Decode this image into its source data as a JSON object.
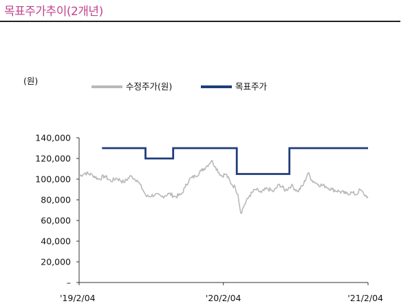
{
  "page": {
    "title": "목표주가추이(2개년)"
  },
  "chart_data": {
    "type": "line",
    "ylabel": "(원)",
    "ylim": [
      0,
      140000
    ],
    "yticks": [
      0,
      20000,
      40000,
      60000,
      80000,
      100000,
      120000,
      140000
    ],
    "ytick_labels": [
      "–",
      "20,000",
      "40,000",
      "60,000",
      "80,000",
      "100,000",
      "120,000",
      "140,000"
    ],
    "xlim": [
      "2019-02-04",
      "2021-02-04"
    ],
    "xticks": [
      "2019-02-04",
      "2020-02-04",
      "2021-02-04"
    ],
    "xtick_labels": [
      "'19/2/04",
      "'20/2/04",
      "'21/2/04"
    ],
    "legend_position": "top",
    "series": [
      {
        "name": "수정주가(원)",
        "color": "#b8b8b8",
        "style": "line",
        "points": [
          [
            "2019-02-04",
            103000
          ],
          [
            "2019-02-20",
            106000
          ],
          [
            "2019-03-10",
            104000
          ],
          [
            "2019-03-25",
            100000
          ],
          [
            "2019-04-10",
            103000
          ],
          [
            "2019-04-25",
            98000
          ],
          [
            "2019-05-10",
            101000
          ],
          [
            "2019-05-28",
            97000
          ],
          [
            "2019-06-15",
            103000
          ],
          [
            "2019-07-01",
            99000
          ],
          [
            "2019-07-15",
            90000
          ],
          [
            "2019-07-25",
            83000
          ],
          [
            "2019-08-15",
            85000
          ],
          [
            "2019-09-01",
            83000
          ],
          [
            "2019-09-20",
            86000
          ],
          [
            "2019-10-05",
            83000
          ],
          [
            "2019-10-20",
            85000
          ],
          [
            "2019-10-30",
            92000
          ],
          [
            "2019-11-10",
            100000
          ],
          [
            "2019-11-25",
            103000
          ],
          [
            "2019-12-10",
            108000
          ],
          [
            "2019-12-25",
            113000
          ],
          [
            "2020-01-05",
            118000
          ],
          [
            "2020-01-15",
            112000
          ],
          [
            "2020-01-30",
            103000
          ],
          [
            "2020-02-10",
            105000
          ],
          [
            "2020-02-25",
            95000
          ],
          [
            "2020-03-05",
            92000
          ],
          [
            "2020-03-12",
            85000
          ],
          [
            "2020-03-19",
            67000
          ],
          [
            "2020-03-28",
            75000
          ],
          [
            "2020-04-10",
            84000
          ],
          [
            "2020-04-25",
            90000
          ],
          [
            "2020-05-10",
            87000
          ],
          [
            "2020-05-25",
            91000
          ],
          [
            "2020-06-10",
            88000
          ],
          [
            "2020-06-25",
            95000
          ],
          [
            "2020-07-10",
            89000
          ],
          [
            "2020-07-25",
            94000
          ],
          [
            "2020-08-10",
            88000
          ],
          [
            "2020-08-25",
            95000
          ],
          [
            "2020-09-05",
            106000
          ],
          [
            "2020-09-15",
            99000
          ],
          [
            "2020-10-01",
            95000
          ],
          [
            "2020-10-20",
            93000
          ],
          [
            "2020-11-05",
            90000
          ],
          [
            "2020-11-25",
            88000
          ],
          [
            "2020-12-10",
            86000
          ],
          [
            "2020-12-25",
            87000
          ],
          [
            "2021-01-05",
            85000
          ],
          [
            "2021-01-15",
            90000
          ],
          [
            "2021-01-25",
            85000
          ],
          [
            "2021-02-04",
            83000
          ]
        ]
      },
      {
        "name": "목표주가",
        "color": "#1f3d7a",
        "style": "step",
        "points": [
          [
            "2019-04-03",
            130000
          ],
          [
            "2019-07-22",
            120000
          ],
          [
            "2019-09-30",
            130000
          ],
          [
            "2020-03-09",
            105000
          ],
          [
            "2020-07-20",
            130000
          ],
          [
            "2021-02-04",
            130000
          ]
        ]
      }
    ]
  }
}
